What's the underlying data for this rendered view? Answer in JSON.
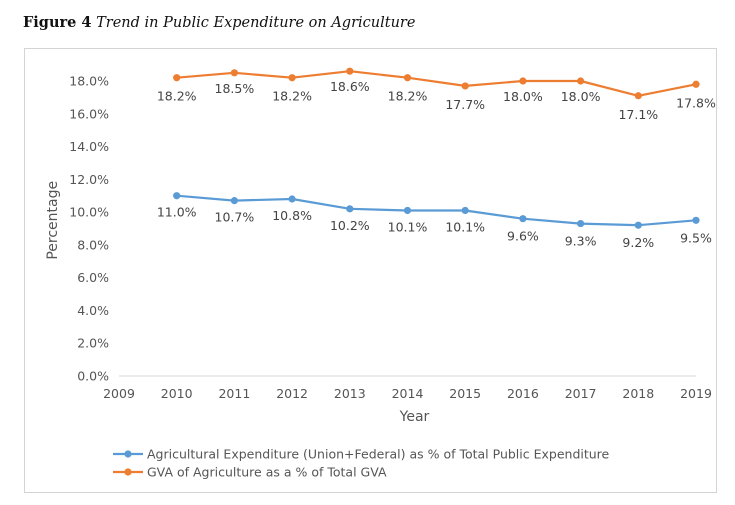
{
  "figure": {
    "label": "Figure 4",
    "title": "Trend in Public Expenditure on Agriculture"
  },
  "chart_data": {
    "type": "line",
    "title": "",
    "xlabel": "Year",
    "ylabel": "Percentage",
    "x": [
      2010,
      2011,
      2012,
      2013,
      2014,
      2015,
      2016,
      2017,
      2018,
      2019
    ],
    "xlim": [
      2009,
      2019
    ],
    "x_ticks": [
      "2009",
      "2010",
      "2011",
      "2012",
      "2013",
      "2014",
      "2015",
      "2016",
      "2017",
      "2018",
      "2019"
    ],
    "ylim": [
      0,
      18
    ],
    "y_ticks": [
      "0.0%",
      "2.0%",
      "4.0%",
      "6.0%",
      "8.0%",
      "10.0%",
      "12.0%",
      "14.0%",
      "16.0%",
      "18.0%"
    ],
    "grid": false,
    "legend_position": "bottom-left",
    "series": [
      {
        "name": "Agricultural Expenditure (Union+Federal) as % of Total Public Expenditure",
        "color": "#5B9BD5",
        "values": [
          11.0,
          10.7,
          10.8,
          10.2,
          10.1,
          10.1,
          9.6,
          9.3,
          9.2,
          9.5
        ],
        "labels": [
          "11.0%",
          "10.7%",
          "10.8%",
          "10.2%",
          "10.1%",
          "10.1%",
          "9.6%",
          "9.3%",
          "9.2%",
          "9.5%"
        ]
      },
      {
        "name": "GVA of Agriculture as a % of Total GVA",
        "color": "#ED7D31",
        "values": [
          18.2,
          18.5,
          18.2,
          18.6,
          18.2,
          17.7,
          18.0,
          18.0,
          17.1,
          17.8
        ],
        "labels": [
          "18.2%",
          "18.5%",
          "18.2%",
          "18.6%",
          "18.2%",
          "17.7%",
          "18.0%",
          "18.0%",
          "17.1%",
          "17.8%"
        ]
      }
    ]
  }
}
